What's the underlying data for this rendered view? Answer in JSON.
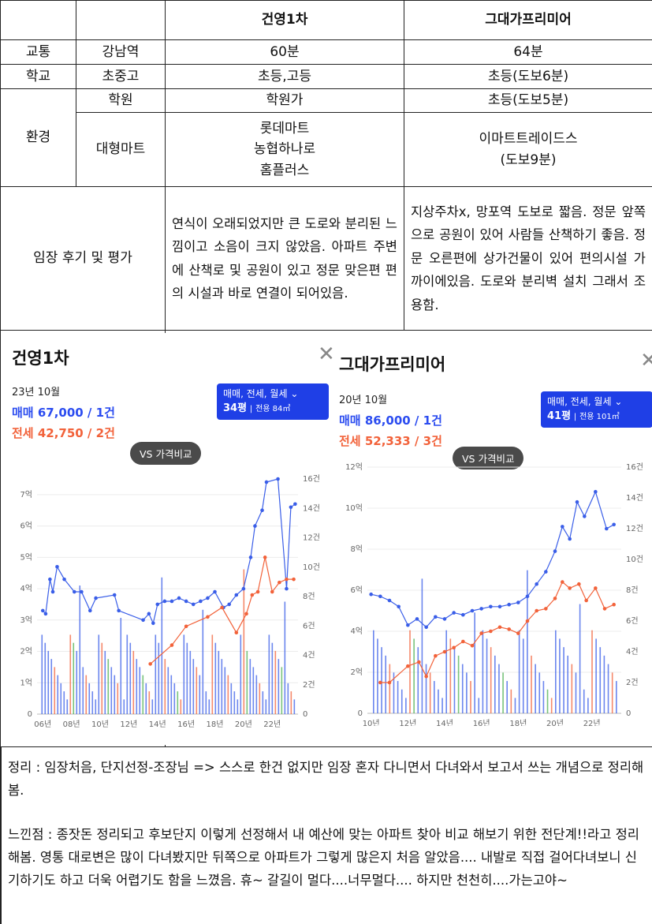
{
  "table": {
    "headers": [
      "",
      "",
      "건영1차",
      "그대가프리미어"
    ],
    "rows": {
      "transit": {
        "cat": "교통",
        "sub": "강남역",
        "a": "60분",
        "b": "64분"
      },
      "school": {
        "cat": "학교",
        "sub": "초중고",
        "a": "초등,고등",
        "b": "초등(도보6분)"
      },
      "env_cat": "환경",
      "academy": {
        "sub": "학원",
        "a": "학원가",
        "b": "초등(도보5분)"
      },
      "mart": {
        "sub": "대형마트",
        "a": [
          "롯데마트",
          "농협하나로",
          "홈플러스"
        ],
        "b": [
          "이마트트레이드스",
          "(도보9분)"
        ]
      },
      "review": {
        "cat": "임장 후기 및 평가",
        "a": "연식이 오래되었지만 큰 도로와 분리된 느낌이고 소음이 크지 않았음. 아파트 주변에 산책로 및 공원이 있고 정문 맞은편 편의 시설과 바로 연결이 되어있음.",
        "b": "지상주차x, 망포역 도보로 짧음. 정문 앞쪽으로 공원이 있어 사람들 산책하기 좋음. 정문 오른편에 상가건물이 있어 편의시설 가까이에있음. 도로와 분리벽 설치 그래서 조용함."
      }
    }
  },
  "panels": [
    {
      "title": "건영1차",
      "date": "23년 10월",
      "sale": "매매 67,000 / 1건",
      "rent": "전세 42,750 / 2건",
      "badge_type": "매매, 전세, 월세",
      "badge_size": "34평",
      "badge_area": "전용 84㎡",
      "vs": "VS 가격비교"
    },
    {
      "title": "그대가프리미어",
      "date": "20년 10월",
      "sale": "매매 86,000 / 1건",
      "rent": "전세 52,333 / 3건",
      "badge_type": "매매, 전세, 월세",
      "badge_size": "41평",
      "badge_area": "전용 101㎡",
      "vs": "VS 가격비교"
    }
  ],
  "chart_data": [
    {
      "type": "line",
      "colors": {
        "sale": "#3a5ee8",
        "rent": "#f2623a",
        "volume_other": "#4caf50"
      },
      "y_left_ticks": [
        "0",
        "1억",
        "2억",
        "3억",
        "4억",
        "5억",
        "6억",
        "7억"
      ],
      "y_right_ticks": [
        "0",
        "2건",
        "4건",
        "6건",
        "8건",
        "10건",
        "12건",
        "14건",
        "16건"
      ],
      "x_ticks": [
        "06년",
        "08년",
        "10년",
        "12년",
        "14년",
        "16년",
        "18년",
        "20년",
        "22년"
      ],
      "ylim": [
        0,
        7.5
      ],
      "y2lim": [
        0,
        16
      ],
      "xlim": [
        2005.6,
        2023.8
      ],
      "series": [
        {
          "values": [
            [
              2006.0,
              3.3
            ],
            [
              2006.2,
              3.2
            ],
            [
              2006.5,
              4.3
            ],
            [
              2006.7,
              3.9
            ],
            [
              2007.0,
              4.7
            ],
            [
              2007.5,
              4.3
            ],
            [
              2008.2,
              3.9
            ],
            [
              2008.7,
              3.9
            ],
            [
              2009.3,
              3.3
            ],
            [
              2009.7,
              3.7
            ],
            [
              2011.0,
              3.8
            ],
            [
              2011.3,
              3.3
            ],
            [
              2013.0,
              3.0
            ],
            [
              2013.4,
              3.2
            ],
            [
              2013.7,
              2.9
            ],
            [
              2014.0,
              3.5
            ],
            [
              2014.5,
              3.6
            ],
            [
              2015.0,
              3.6
            ],
            [
              2015.5,
              3.7
            ],
            [
              2016.0,
              3.6
            ],
            [
              2016.5,
              3.5
            ],
            [
              2017.0,
              3.6
            ],
            [
              2017.5,
              3.7
            ],
            [
              2018.0,
              3.9
            ],
            [
              2018.6,
              3.4
            ],
            [
              2019.0,
              3.5
            ],
            [
              2019.5,
              3.8
            ],
            [
              2020.0,
              4.0
            ],
            [
              2020.5,
              5.0
            ],
            [
              2020.8,
              6.0
            ],
            [
              2021.3,
              6.5
            ],
            [
              2021.6,
              7.4
            ],
            [
              2022.4,
              7.5
            ],
            [
              2023.0,
              4.0
            ],
            [
              2023.3,
              6.6
            ],
            [
              2023.6,
              6.7
            ]
          ]
        },
        {
          "values": [
            [
              2013.5,
              1.6
            ],
            [
              2015.0,
              2.2
            ],
            [
              2016.0,
              2.8
            ],
            [
              2017.5,
              3.1
            ],
            [
              2018.5,
              3.4
            ],
            [
              2019.5,
              2.6
            ],
            [
              2020.2,
              3.2
            ],
            [
              2020.6,
              3.8
            ],
            [
              2021.0,
              3.9
            ],
            [
              2021.5,
              5.0
            ],
            [
              2022.0,
              3.9
            ],
            [
              2022.5,
              4.2
            ],
            [
              2023.0,
              4.3
            ],
            [
              2023.5,
              4.3
            ]
          ]
        }
      ]
    },
    {
      "type": "line",
      "colors": {
        "sale": "#3a5ee8",
        "rent": "#f2623a",
        "volume_other": "#4caf50"
      },
      "y_left_ticks": [
        "0",
        "2억",
        "4억",
        "6억",
        "8억",
        "10억",
        "12억"
      ],
      "y_right_ticks": [
        "0",
        "2건",
        "4건",
        "6건",
        "8건",
        "10건",
        "12건",
        "14건",
        "16건"
      ],
      "x_ticks": [
        "10년",
        "12년",
        "14년",
        "16년",
        "18년",
        "20년",
        "22년"
      ],
      "ylim": [
        0,
        12
      ],
      "y2lim": [
        0,
        16
      ],
      "xlim": [
        2009.8,
        2023.6
      ],
      "series": [
        {
          "values": [
            [
              2010.0,
              5.8
            ],
            [
              2010.5,
              5.7
            ],
            [
              2011.0,
              5.5
            ],
            [
              2011.5,
              5.2
            ],
            [
              2012.0,
              4.3
            ],
            [
              2012.5,
              4.6
            ],
            [
              2013.0,
              4.2
            ],
            [
              2013.5,
              4.7
            ],
            [
              2014.0,
              4.6
            ],
            [
              2014.5,
              4.9
            ],
            [
              2015.0,
              4.8
            ],
            [
              2015.5,
              5.0
            ],
            [
              2016.0,
              5.1
            ],
            [
              2016.5,
              5.2
            ],
            [
              2017.0,
              5.2
            ],
            [
              2017.5,
              5.3
            ],
            [
              2018.0,
              5.4
            ],
            [
              2018.5,
              5.7
            ],
            [
              2019.0,
              6.3
            ],
            [
              2019.5,
              6.9
            ],
            [
              2020.0,
              7.9
            ],
            [
              2020.4,
              9.1
            ],
            [
              2020.8,
              8.5
            ],
            [
              2021.2,
              10.3
            ],
            [
              2021.6,
              9.6
            ],
            [
              2022.2,
              10.8
            ],
            [
              2022.8,
              9.0
            ],
            [
              2023.2,
              9.2
            ]
          ]
        },
        {
          "values": [
            [
              2010.5,
              1.5
            ],
            [
              2011.0,
              1.5
            ],
            [
              2012.0,
              2.3
            ],
            [
              2012.6,
              2.5
            ],
            [
              2013.0,
              1.8
            ],
            [
              2013.5,
              2.8
            ],
            [
              2014.0,
              3.0
            ],
            [
              2014.5,
              3.2
            ],
            [
              2015.0,
              3.5
            ],
            [
              2015.5,
              3.3
            ],
            [
              2016.0,
              3.9
            ],
            [
              2016.5,
              4.0
            ],
            [
              2017.0,
              4.2
            ],
            [
              2017.5,
              4.1
            ],
            [
              2018.0,
              3.9
            ],
            [
              2018.5,
              4.5
            ],
            [
              2019.0,
              5.0
            ],
            [
              2019.5,
              5.1
            ],
            [
              2020.0,
              5.6
            ],
            [
              2020.4,
              6.4
            ],
            [
              2020.8,
              6.1
            ],
            [
              2021.3,
              6.3
            ],
            [
              2021.7,
              5.5
            ],
            [
              2022.2,
              6.1
            ],
            [
              2022.7,
              5.1
            ],
            [
              2023.2,
              5.3
            ]
          ]
        }
      ]
    }
  ],
  "summary": {
    "p1": "정리 :  임장처음, 단지선정-조장님 => 스스로 한건 없지만 임장 혼자 다니면서 다녀와서 보고서 쓰는 개념으로 정리해봄.",
    "p2": "느낀점 : 종잣돈 정리되고 후보단지 이렇게 선정해서 내 예산에 맞는 아파트 찾아 비교 해보기 위한 전단계!!라고 정리해봄. 영통 대로변은 많이 다녀봤지만 뒤쪽으로 아파트가 그렇게 많은지 처음 알았음.... 내발로 직접 걸어다녀보니 신기하기도 하고 더욱 어렵기도 함을 느꼈음. 휴~ 갈길이 멀다....너무멀다.... 하지만 천천히....가는고야~"
  }
}
